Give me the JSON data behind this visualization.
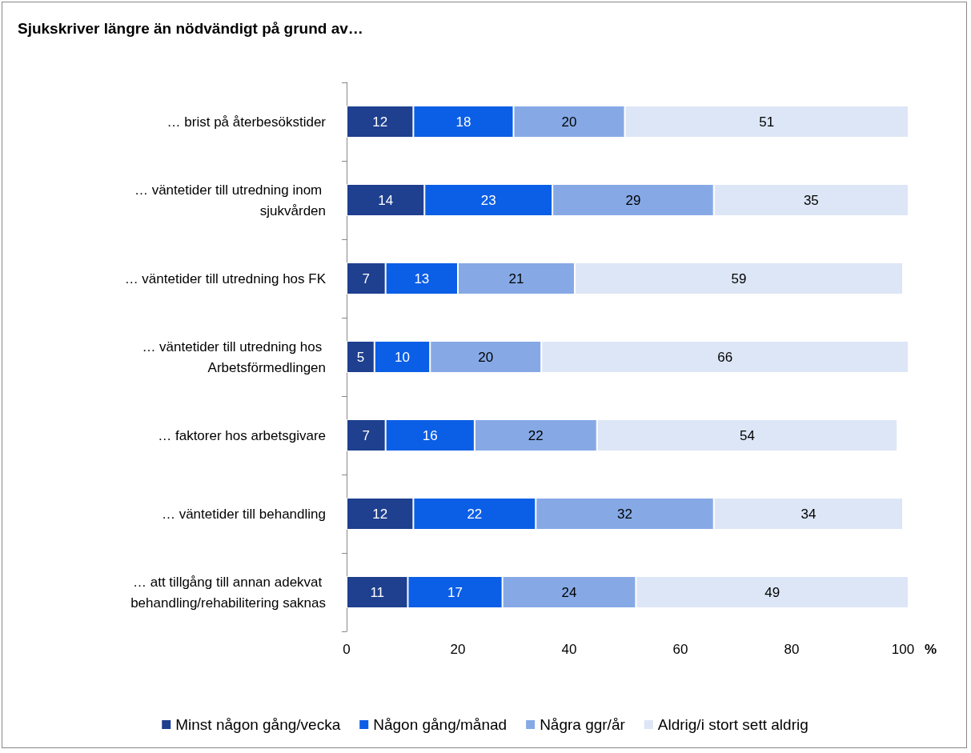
{
  "chart_data": {
    "type": "bar",
    "orientation": "horizontal",
    "stacked": true,
    "title": "Sjukskriver längre än nödvändigt på grund av…",
    "xlabel": "%",
    "categories": [
      "… brist på återbesökstider",
      "… väntetider till utredning inom sjukvården",
      "… väntetider till utredning hos FK",
      "… väntetider till utredning hos Arbetsförmedlingen",
      "… faktorer hos arbetsgivare",
      "… väntetider till behandling",
      "… att tillgång till annan adekvat behandling/rehabilitering saknas"
    ],
    "series": [
      {
        "name": "Minst någon gång/vecka",
        "color": "#1f3f8f",
        "values": [
          12,
          14,
          7,
          5,
          7,
          12,
          11
        ]
      },
      {
        "name": "Någon gång/månad",
        "color": "#0b5ee6",
        "values": [
          18,
          23,
          13,
          10,
          16,
          22,
          17
        ]
      },
      {
        "name": "Några ggr/år",
        "color": "#86a9e6",
        "values": [
          20,
          29,
          21,
          20,
          22,
          32,
          24
        ]
      },
      {
        "name": "Aldrig/i stort sett aldrig",
        "color": "#dce6f6",
        "values": [
          51,
          35,
          59,
          66,
          54,
          34,
          49
        ]
      }
    ],
    "xlim": [
      0,
      101
    ],
    "xticks": [
      0,
      20,
      40,
      60,
      80,
      100
    ],
    "data_labels": true,
    "grid": false,
    "legend": "bottom"
  }
}
